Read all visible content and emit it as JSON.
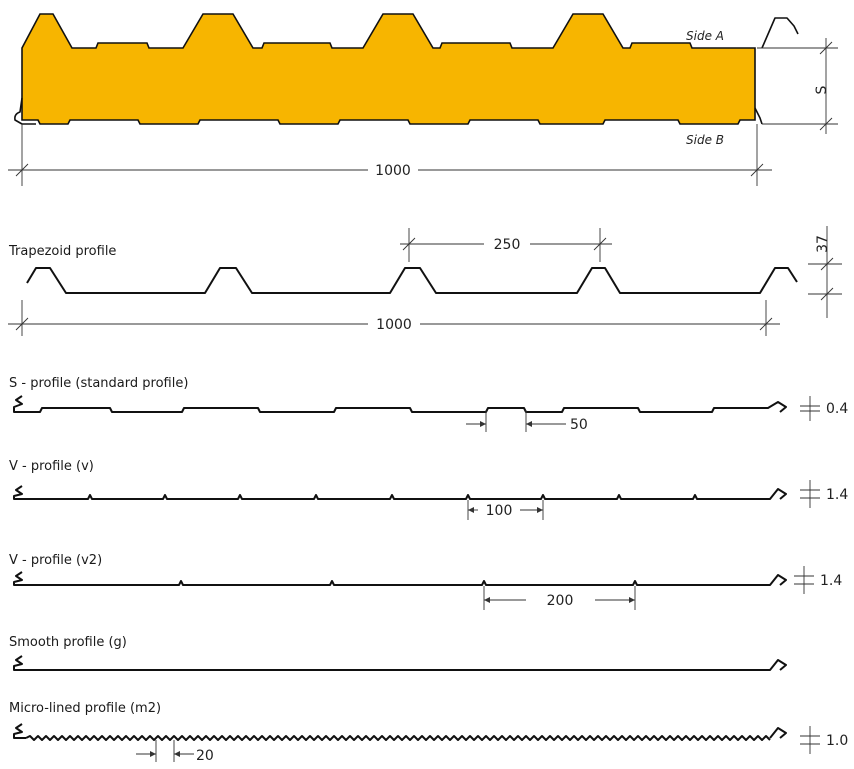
{
  "panel": {
    "side_a": "Side A",
    "side_b": "Side B",
    "thickness": "S",
    "width": "1000",
    "core_color": "#f7b500"
  },
  "trapezoid": {
    "title": "Trapezoid profile",
    "rib_spacing": "250",
    "height": "37",
    "width": "1000"
  },
  "profiles": [
    {
      "title": "S - profile (standard profile)",
      "spacing": "50",
      "depth": "0.4"
    },
    {
      "title": "V - profile (v)",
      "spacing": "100",
      "depth": "1.4"
    },
    {
      "title": "V - profile (v2)",
      "spacing": "200",
      "depth": "1.4"
    },
    {
      "title": "Smooth profile (g)"
    },
    {
      "title": "Micro-lined profile (m2)",
      "spacing": "20",
      "depth": "1.0"
    }
  ]
}
